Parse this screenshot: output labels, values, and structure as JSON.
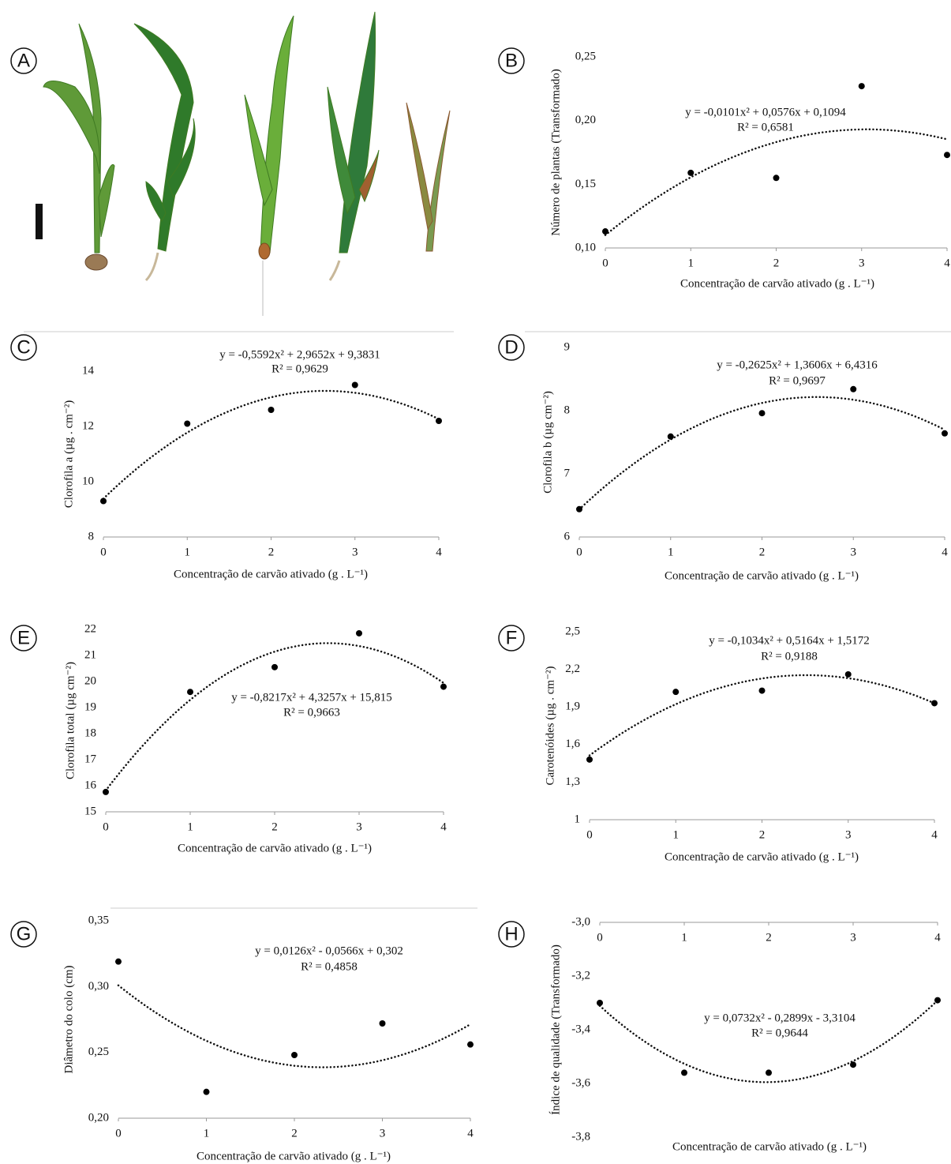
{
  "photo_panel": "A",
  "chart_data": [
    {
      "type": "scatter",
      "panel": "B",
      "equation": "y = -0,0101x² + 0,0576x + 0,1094",
      "r2": "R² = 0,6581",
      "x_label": "Concentração de carvão ativado (g . L⁻¹)",
      "y_label": "Número de plantas (Transformado)",
      "x": [
        0,
        1,
        2,
        3,
        4
      ],
      "values": [
        0.113,
        0.159,
        0.155,
        0.227,
        0.173
      ],
      "color": "#000000",
      "trendline": "polynomial-2",
      "xlim": [
        0,
        4
      ],
      "xticks": [
        0,
        1,
        2,
        3,
        4
      ],
      "ylim": [
        0.1,
        0.25
      ],
      "yticks": [
        {
          "value": 0.1,
          "label": "0,10"
        },
        {
          "value": 0.15,
          "label": "0,15"
        },
        {
          "value": 0.2,
          "label": "0,20"
        },
        {
          "value": 0.25,
          "label": "0,25"
        }
      ],
      "x_axis_position": "bottom"
    },
    {
      "type": "scatter",
      "panel": "C",
      "equation": "y = -0,5592x² + 2,9652x + 9,3831",
      "r2": "R² = 0,9629",
      "x_label": "Concentração de carvão ativado (g . L⁻¹)",
      "y_label": "Clorofila a (µg . cm⁻²)",
      "x": [
        0,
        1,
        2,
        3,
        4
      ],
      "values": [
        9.3,
        12.1,
        12.6,
        13.5,
        12.2
      ],
      "color": "#000000",
      "trendline": "polynomial-2",
      "xlim": [
        0,
        4
      ],
      "xticks": [
        0,
        1,
        2,
        3,
        4
      ],
      "ylim": [
        8,
        14
      ],
      "yticks": [
        8,
        10,
        12,
        14
      ],
      "x_axis_position": "bottom"
    },
    {
      "type": "scatter",
      "panel": "D",
      "equation": "y = -0,2625x² + 1,3606x + 6,4316",
      "r2": "R² = 0,9697",
      "x_label": "Concentração de carvão ativado (g . L⁻¹)",
      "y_label": "Clorofila b (µg cm⁻²)",
      "x": [
        0,
        1,
        2,
        3,
        4
      ],
      "values": [
        6.44,
        7.59,
        7.96,
        8.34,
        7.64
      ],
      "color": "#000000",
      "trendline": "polynomial-2",
      "xlim": [
        0,
        4
      ],
      "xticks": [
        0,
        1,
        2,
        3,
        4
      ],
      "ylim": [
        6,
        9
      ],
      "yticks": [
        6,
        7,
        8,
        9
      ],
      "x_axis_position": "bottom"
    },
    {
      "type": "scatter",
      "panel": "E",
      "equation": "y = -0,8217x² + 4,3257x + 15,815",
      "r2": "R² = 0,9663",
      "x_label": "Concentração de carvão ativado (g . L⁻¹)",
      "y_label": "Clorofila total (µg cm⁻²)",
      "x": [
        0,
        1,
        2,
        3,
        4
      ],
      "values": [
        15.76,
        19.6,
        20.55,
        21.85,
        19.8
      ],
      "color": "#000000",
      "trendline": "polynomial-2",
      "xlim": [
        0,
        4
      ],
      "xticks": [
        0,
        1,
        2,
        3,
        4
      ],
      "ylim": [
        15,
        22
      ],
      "yticks": [
        15,
        16,
        17,
        18,
        19,
        20,
        21,
        22
      ],
      "x_axis_position": "bottom"
    },
    {
      "type": "scatter",
      "panel": "F",
      "equation": "y = -0,1034x² + 0,5164x + 1,5172",
      "r2": "R² = 0,9188",
      "x_label": "Concentração de carvão ativado (g . L⁻¹)",
      "y_label": "Carotenóides (µg . cm⁻²)",
      "x": [
        0,
        1,
        2,
        3,
        4
      ],
      "values": [
        1.48,
        2.02,
        2.03,
        2.16,
        1.93
      ],
      "color": "#000000",
      "trendline": "polynomial-2",
      "xlim": [
        0,
        4
      ],
      "xticks": [
        0,
        1,
        2,
        3,
        4
      ],
      "ylim": [
        1,
        2.5
      ],
      "yticks": [
        1,
        {
          "value": 1.3,
          "label": "1,3"
        },
        {
          "value": 1.6,
          "label": "1,6"
        },
        {
          "value": 1.9,
          "label": "1,9"
        },
        {
          "value": 2.2,
          "label": "2,2"
        },
        {
          "value": 2.5,
          "label": "2,5"
        }
      ],
      "x_axis_position": "bottom"
    },
    {
      "type": "scatter",
      "panel": "G",
      "equation": "y = 0,0126x² - 0,0566x + 0,302",
      "r2": "R² = 0,4858",
      "x_label": "Concentração de carvão ativado (g . L⁻¹)",
      "y_label": "Diâmetro do colo (cm)",
      "x": [
        0,
        1,
        2,
        3,
        4
      ],
      "values": [
        0.319,
        0.22,
        0.248,
        0.272,
        0.256
      ],
      "color": "#000000",
      "trendline": "polynomial-2",
      "xlim": [
        0,
        4
      ],
      "xticks": [
        0,
        1,
        2,
        3,
        4
      ],
      "ylim": [
        0.2,
        0.35
      ],
      "yticks": [
        {
          "value": 0.2,
          "label": "0,20"
        },
        {
          "value": 0.25,
          "label": "0,25"
        },
        {
          "value": 0.3,
          "label": "0,30"
        },
        {
          "value": 0.35,
          "label": "0,35"
        }
      ],
      "x_axis_position": "bottom"
    },
    {
      "type": "scatter",
      "panel": "H",
      "equation": "y = 0,0732x² - 0,2899x - 3,3104",
      "r2": "R² = 0,9644",
      "x_label": "Concentração de carvão ativado (g . L⁻¹)",
      "y_label": "Índice de qualidade (Transformado)",
      "x": [
        0,
        1,
        2,
        3,
        4
      ],
      "values": [
        -3.3,
        -3.56,
        -3.56,
        -3.53,
        -3.29
      ],
      "color": "#000000",
      "trendline": "polynomial-2",
      "xlim": [
        0,
        4
      ],
      "xticks": [
        0,
        1,
        2,
        3,
        4
      ],
      "ylim": [
        -3.8,
        -3.0
      ],
      "yticks": [
        {
          "value": -3.8,
          "label": "-3,8"
        },
        {
          "value": -3.6,
          "label": "-3,6"
        },
        {
          "value": -3.4,
          "label": "-3,4"
        },
        {
          "value": -3.2,
          "label": "-3,2"
        },
        {
          "value": -3.0,
          "label": "-3,0"
        }
      ],
      "x_axis_position": "top"
    }
  ]
}
